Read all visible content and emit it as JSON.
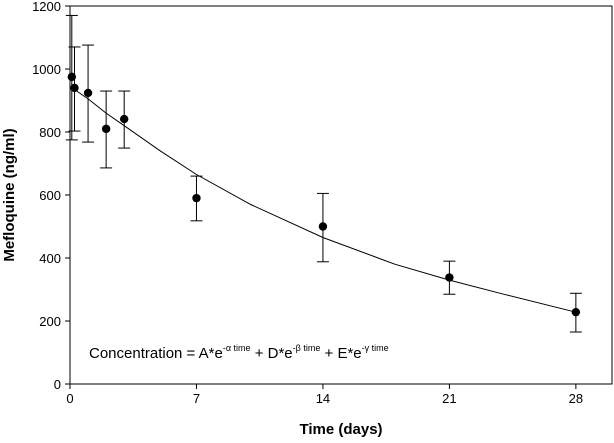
{
  "chart_data": {
    "type": "scatter",
    "title": "",
    "xlabel": "Time (days)",
    "ylabel": "Mefloquine (ng/ml)",
    "xlim": [
      0,
      30
    ],
    "ylim": [
      0,
      1200
    ],
    "xticks": [
      0,
      7,
      14,
      21,
      28
    ],
    "yticks": [
      0,
      200,
      400,
      600,
      800,
      1000,
      1200
    ],
    "grid": false,
    "points": [
      {
        "x": 0.1,
        "y": 975,
        "err_low": 775,
        "err_high": 1170
      },
      {
        "x": 0.25,
        "y": 940,
        "err_low": 803,
        "err_high": 1070
      },
      {
        "x": 1,
        "y": 924,
        "err_low": 768,
        "err_high": 1076
      },
      {
        "x": 2,
        "y": 810,
        "err_low": 686,
        "err_high": 930
      },
      {
        "x": 3,
        "y": 841,
        "err_low": 749,
        "err_high": 930
      },
      {
        "x": 7,
        "y": 590,
        "err_low": 518,
        "err_high": 660
      },
      {
        "x": 14,
        "y": 500,
        "err_low": 388,
        "err_high": 605
      },
      {
        "x": 21,
        "y": 338,
        "err_low": 285,
        "err_high": 390
      },
      {
        "x": 28,
        "y": 228,
        "err_low": 165,
        "err_high": 288
      }
    ],
    "fit_curve": {
      "x": [
        0.25,
        1,
        2,
        3,
        5,
        7,
        10,
        14,
        18,
        21,
        24,
        28
      ],
      "y": [
        935,
        905,
        860,
        820,
        740,
        665,
        570,
        465,
        380,
        330,
        285,
        228
      ]
    },
    "annotation": {
      "prefix": "Concentration = A*e",
      "sup1": "-α time",
      "mid1": " + D*e",
      "sup2": "-β time",
      "mid2": " + E*e",
      "sup3": "-γ time"
    }
  }
}
